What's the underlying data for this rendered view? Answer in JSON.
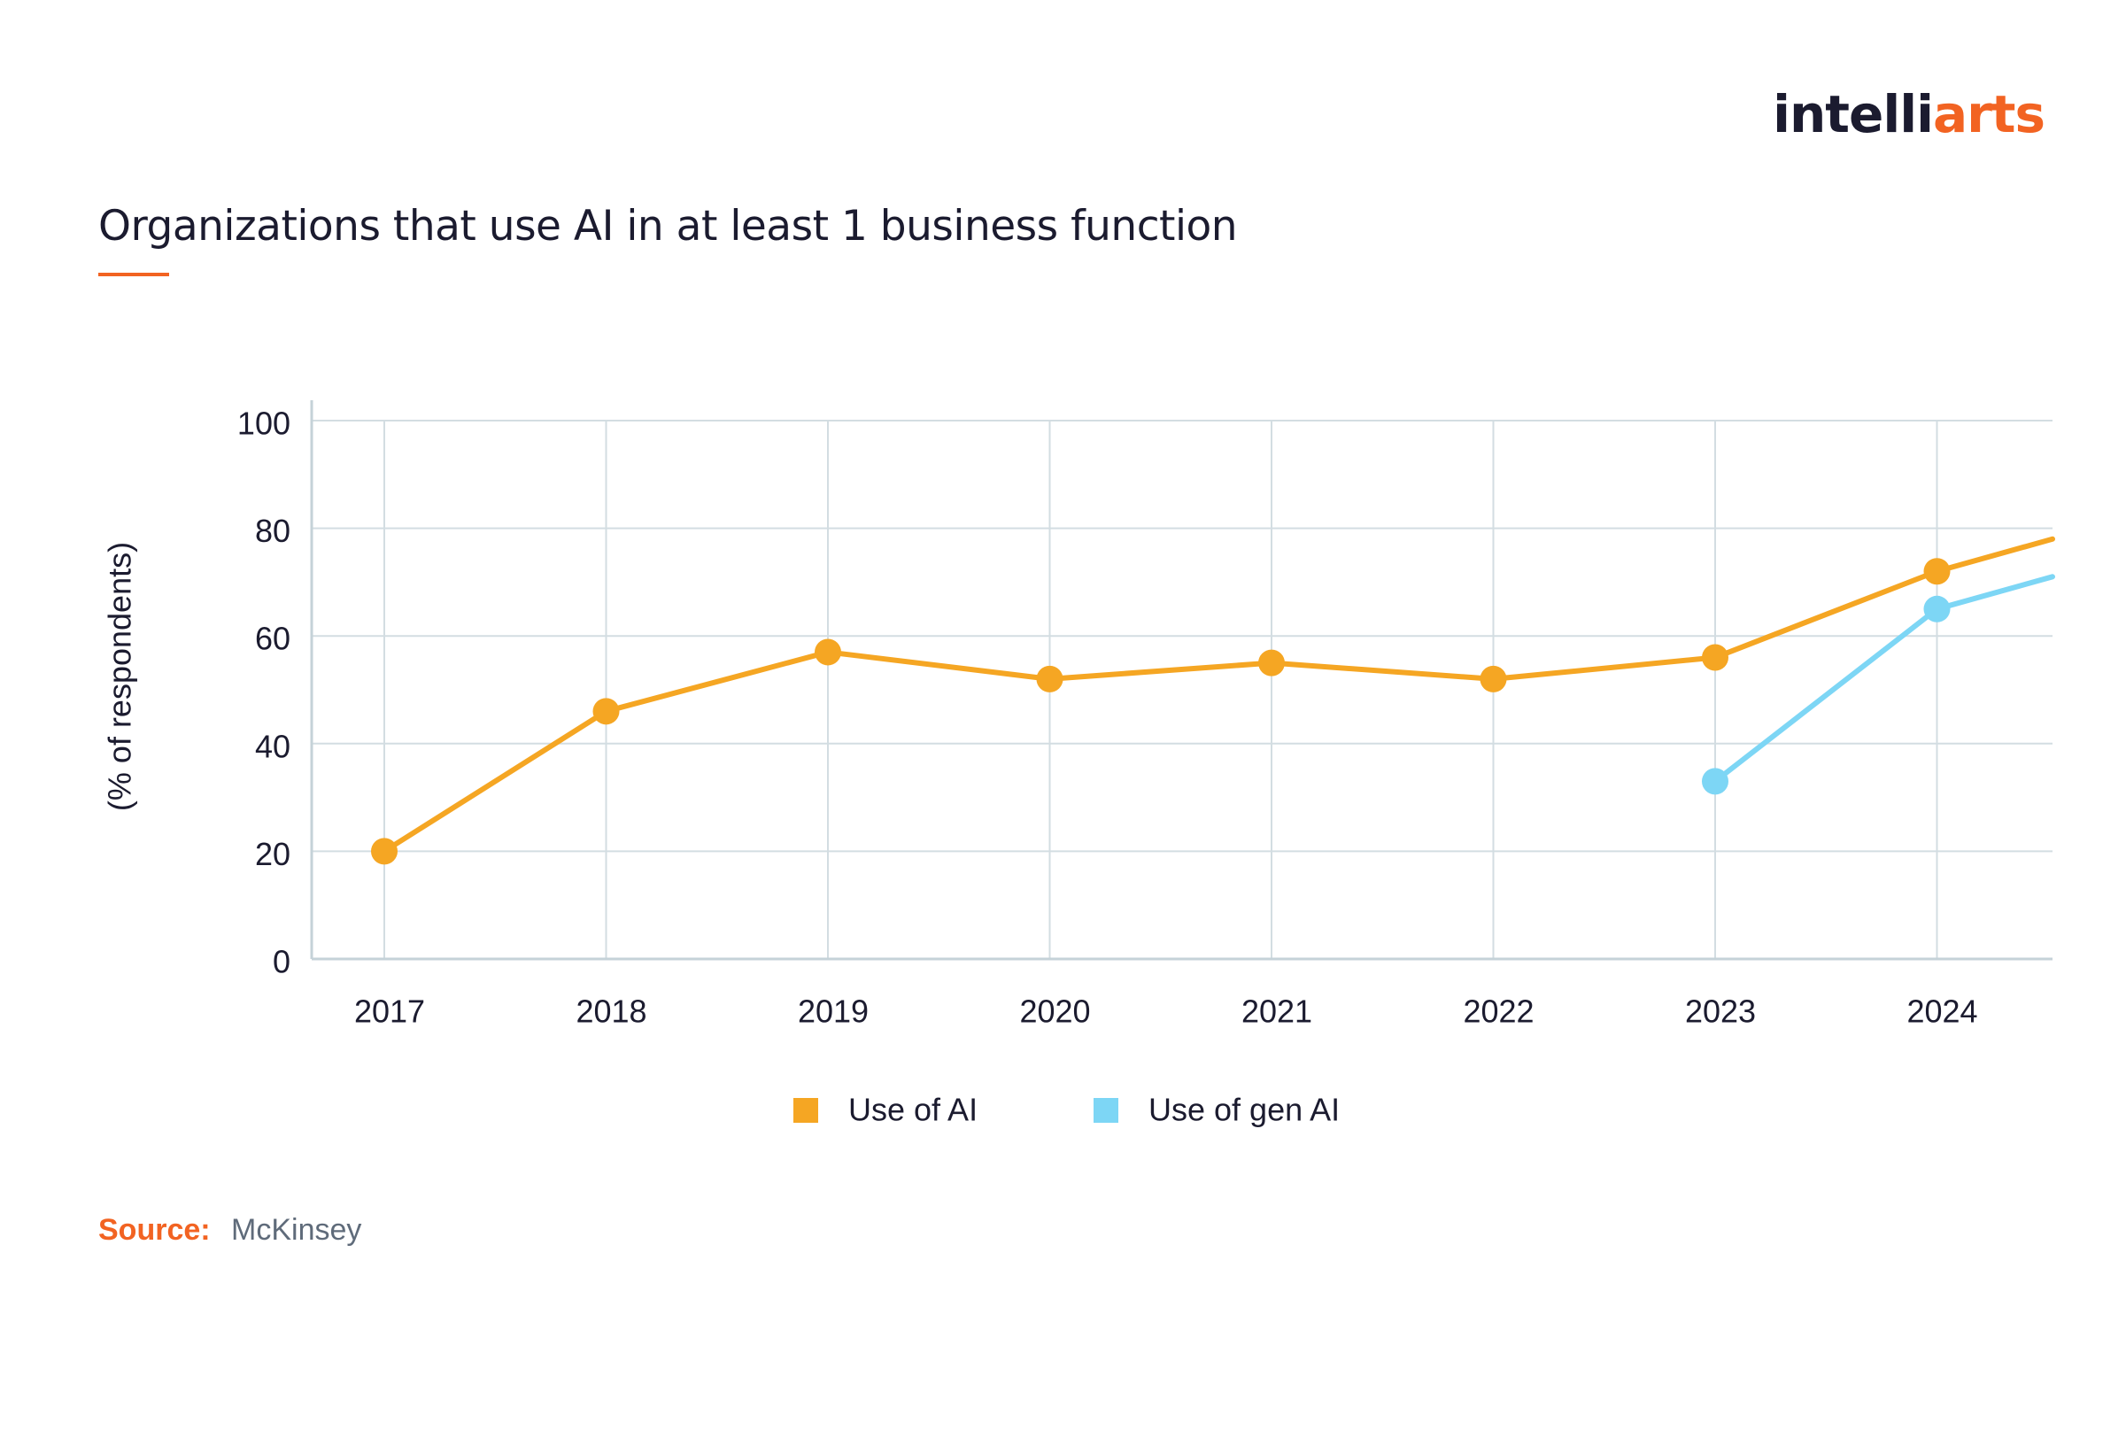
{
  "brand": {
    "logo_part1": "intelli",
    "logo_part2": "arts",
    "primary_color": "#f26322",
    "text_color": "#1b1b2f"
  },
  "header": {
    "title": "Organizations that use AI in at least 1 business function"
  },
  "source": {
    "label": "Source:",
    "value": "McKinsey"
  },
  "chart_data": {
    "type": "line",
    "title": "Organizations that use AI in at least 1 business function",
    "xlabel": "",
    "ylabel": "(% of respondents)",
    "categories": [
      "2017",
      "2018",
      "2019",
      "2020",
      "2021",
      "2022",
      "2023",
      "2024"
    ],
    "ylim": [
      0,
      100
    ],
    "yticks": [
      "0",
      "20",
      "40",
      "60",
      "80",
      "100"
    ],
    "grid": true,
    "legend_position": "bottom-center",
    "series": [
      {
        "name": "Use of AI",
        "color": "#f5a623",
        "values": [
          20,
          46,
          57,
          52,
          55,
          52,
          56,
          72
        ],
        "trailing_value": 78
      },
      {
        "name": "Use of gen AI",
        "color": "#7dd6f5",
        "values": [
          null,
          null,
          null,
          null,
          null,
          null,
          33,
          65
        ],
        "trailing_value": 71
      }
    ]
  }
}
